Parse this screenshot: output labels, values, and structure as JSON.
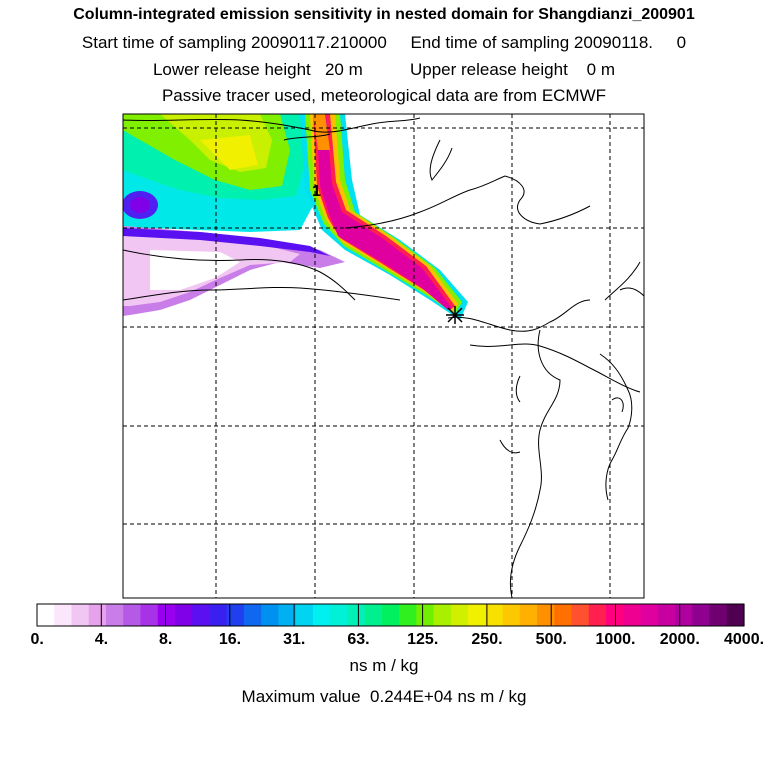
{
  "header": {
    "title": "Column-integrated emission sensitivity in nested domain for Shangdianzi_200901",
    "line2": "Start time of sampling 20090117.210000     End time of sampling 20090118.     0",
    "line3": "Lower release height   20 m          Upper release height    0 m",
    "line4": "Passive tracer used, meteorological data are from ECMWF"
  },
  "map": {
    "contour_label": "1",
    "release_marker": "asterisk-icon"
  },
  "colorbar": {
    "ticks": [
      "0.",
      "4.",
      "8.",
      "16.",
      "31.",
      "63.",
      "125.",
      "250.",
      "500.",
      "1000.",
      "2000.",
      "4000."
    ],
    "colors": [
      "#ffffff",
      "#fbe6fb",
      "#f2c6f2",
      "#e6a2ec",
      "#c87de8",
      "#b45ae6",
      "#a732e8",
      "#9a00f0",
      "#8000e8",
      "#5a10f0",
      "#3a20f0",
      "#2040f0",
      "#1068f0",
      "#0090f0",
      "#00b0f0",
      "#00d4f0",
      "#00f0f0",
      "#00f0d8",
      "#00f0b8",
      "#00f090",
      "#00f060",
      "#30f020",
      "#70f000",
      "#a8f000",
      "#d0f000",
      "#f0f000",
      "#f8e000",
      "#fcc800",
      "#ffb000",
      "#ff9000",
      "#ff7000",
      "#ff5030",
      "#ff2050",
      "#ff0080",
      "#f00090",
      "#e000a0",
      "#c800a0",
      "#b000a0",
      "#900090",
      "#700070",
      "#500050"
    ],
    "unit": "ns m / kg",
    "max_label": "Maximum value  0.244E+04 ns m / kg"
  }
}
